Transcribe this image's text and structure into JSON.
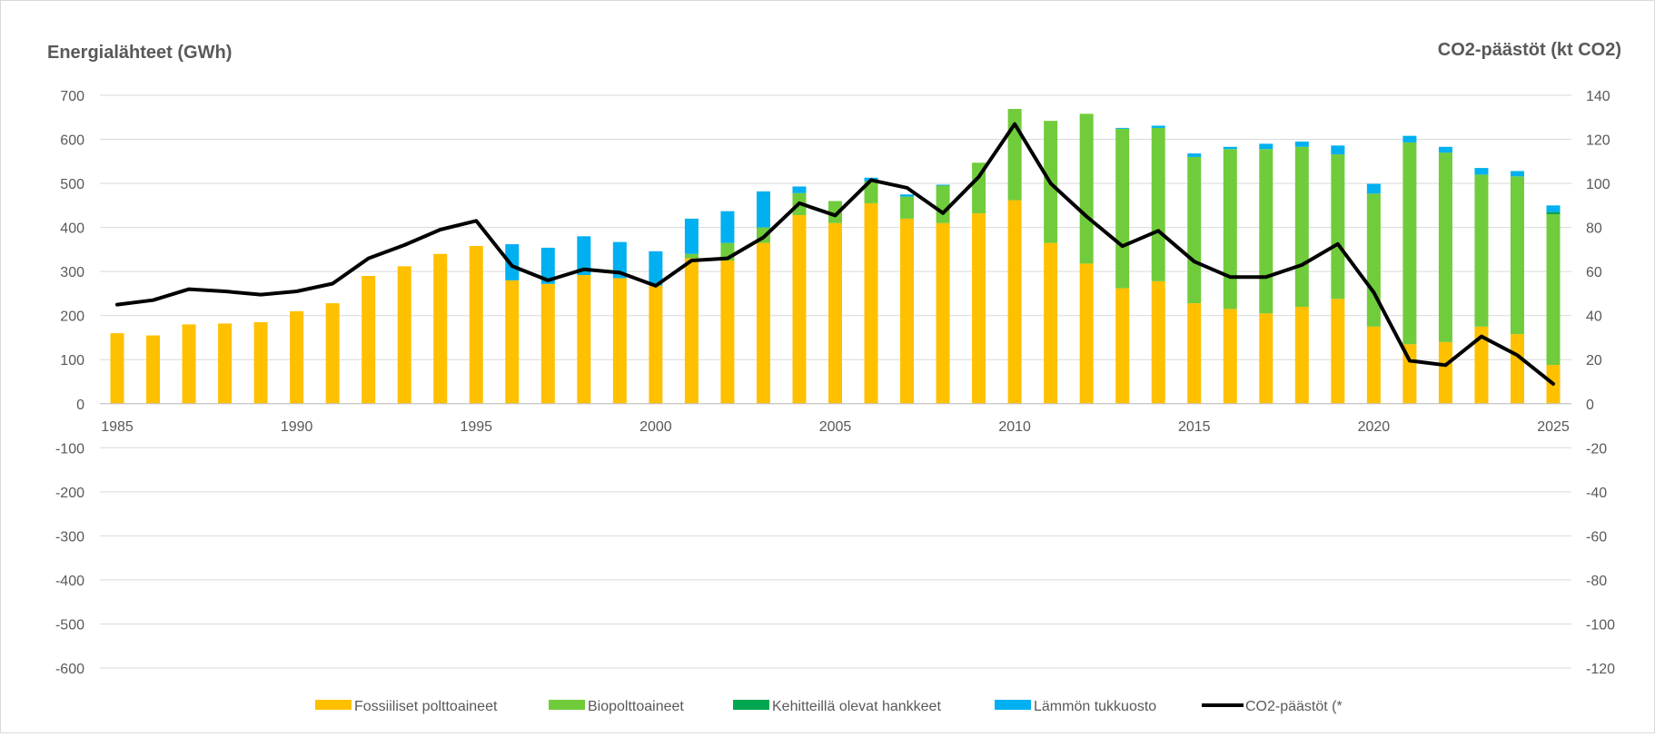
{
  "chart_data": {
    "type": "bar",
    "stacked": true,
    "left_axis_title": "Energialähteet (GWh)",
    "right_axis_title": "CO2-päästöt (kt CO2)",
    "ylim_left": [
      -600,
      700
    ],
    "ylim_right": [
      -120,
      140
    ],
    "yticks_left": [
      "700",
      "600",
      "500",
      "400",
      "300",
      "200",
      "100",
      "0",
      "-100",
      "-200",
      "-300",
      "-400",
      "-500",
      "-600"
    ],
    "yticks_right": [
      "140",
      "120",
      "100",
      "80",
      "60",
      "40",
      "20",
      "0",
      "-20",
      "-40",
      "-60",
      "-80",
      "-100",
      "-120"
    ],
    "x_tick_labels": [
      "1985",
      "1990",
      "1995",
      "2000",
      "2005",
      "2010",
      "2015",
      "2020",
      "2025"
    ],
    "x_tick_years": [
      1985,
      1990,
      1995,
      2000,
      2005,
      2010,
      2015,
      2020,
      2025
    ],
    "years": [
      1985,
      1986,
      1987,
      1988,
      1989,
      1990,
      1991,
      1992,
      1993,
      1994,
      1995,
      1996,
      1997,
      1998,
      1999,
      2000,
      2001,
      2002,
      2003,
      2004,
      2005,
      2006,
      2007,
      2008,
      2009,
      2010,
      2011,
      2012,
      2013,
      2014,
      2015,
      2016,
      2017,
      2018,
      2019,
      2020,
      2021,
      2022,
      2023,
      2024,
      2025
    ],
    "grid": true,
    "legend_position": "bottom",
    "series": [
      {
        "name": "Fossiiliset polttoaineet",
        "color": "#ffc000",
        "axis": "left",
        "kind": "bar",
        "values": [
          160,
          155,
          180,
          182,
          185,
          210,
          228,
          290,
          312,
          340,
          358,
          280,
          272,
          292,
          285,
          268,
          330,
          325,
          365,
          428,
          410,
          455,
          420,
          410,
          432,
          462,
          365,
          318,
          262,
          278,
          228,
          215,
          205,
          220,
          238,
          175,
          135,
          140,
          175,
          158,
          88
        ]
      },
      {
        "name": "Biopolttoaineet",
        "color": "#70cc3b",
        "axis": "left",
        "kind": "bar",
        "values": [
          0,
          0,
          0,
          0,
          0,
          0,
          0,
          0,
          0,
          0,
          0,
          0,
          0,
          0,
          0,
          0,
          10,
          40,
          35,
          50,
          50,
          50,
          50,
          85,
          115,
          207,
          277,
          340,
          362,
          348,
          332,
          363,
          373,
          363,
          328,
          302,
          458,
          430,
          345,
          358,
          342
        ]
      },
      {
        "name": "Kehitteillä olevat hankkeet",
        "color": "#00a651",
        "axis": "left",
        "kind": "bar",
        "values": [
          0,
          0,
          0,
          0,
          0,
          0,
          0,
          0,
          0,
          0,
          0,
          0,
          0,
          0,
          0,
          0,
          0,
          0,
          0,
          0,
          0,
          0,
          0,
          0,
          0,
          0,
          0,
          0,
          0,
          0,
          0,
          0,
          0,
          0,
          0,
          0,
          0,
          0,
          0,
          0,
          5
        ]
      },
      {
        "name": "Lämmön tukkuosto",
        "color": "#00b0f0",
        "axis": "left",
        "kind": "bar",
        "values": [
          0,
          0,
          0,
          0,
          0,
          0,
          0,
          0,
          0,
          0,
          0,
          82,
          82,
          88,
          82,
          78,
          80,
          72,
          82,
          15,
          0,
          8,
          5,
          2,
          0,
          0,
          0,
          0,
          2,
          5,
          8,
          5,
          12,
          12,
          20,
          22,
          15,
          13,
          15,
          12,
          15
        ]
      },
      {
        "name": "CO2-päästöt (*",
        "color": "#000000",
        "axis": "right",
        "kind": "line",
        "values": [
          45,
          47,
          52,
          51,
          49.5,
          51,
          54.5,
          66,
          72,
          79,
          83,
          62.5,
          56,
          61,
          59.5,
          53.5,
          65,
          66,
          75.5,
          91,
          85.5,
          101.5,
          98,
          86.5,
          103,
          127,
          100,
          85,
          71.5,
          78.5,
          64.5,
          57.5,
          57.5,
          63,
          72.5,
          50.5,
          19.5,
          17.5,
          30.5,
          22,
          9
        ]
      }
    ]
  }
}
